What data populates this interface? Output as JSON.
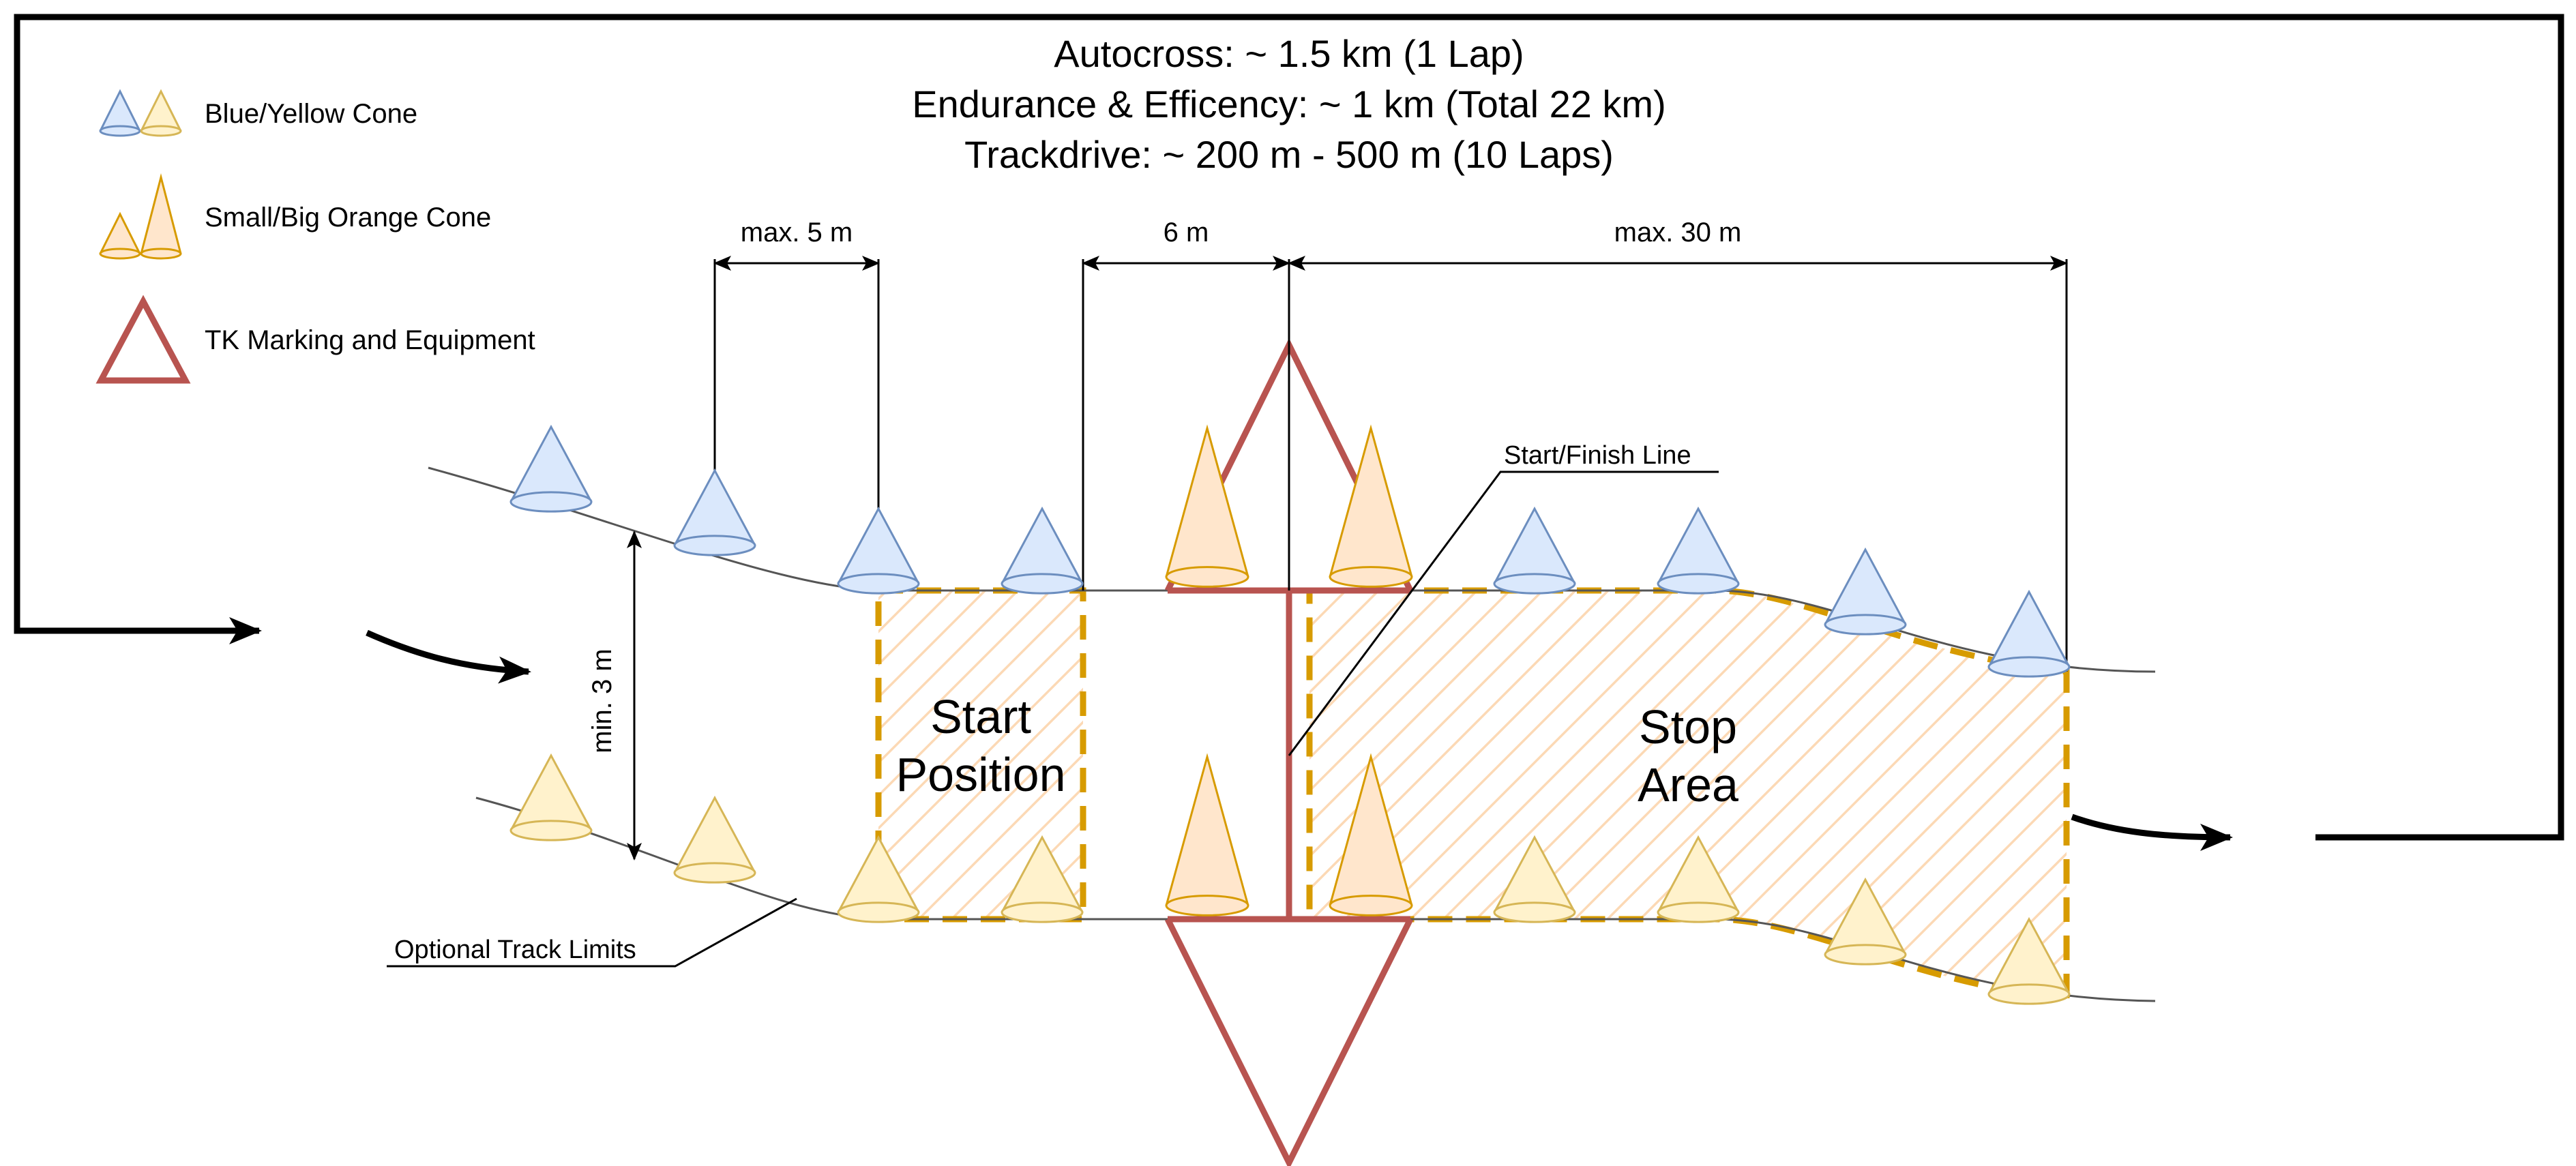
{
  "title_lines": [
    "Autocross: ~ 1.5 km (1 Lap)",
    "Endurance & Efficency: ~ 1 km (Total 22 km)",
    "Trackdrive: ~ 200 m - 500 m (10 Laps)"
  ],
  "legend": {
    "blue_yellow": "Blue/Yellow Cone",
    "orange": "Small/Big Orange Cone",
    "tk": "TK Marking and Equipment"
  },
  "dimensions": {
    "max5": "max. 5 m",
    "six": "6 m",
    "max30": "max. 30 m",
    "min3": "min. 3 m"
  },
  "areas": {
    "start": [
      "Start",
      "Position"
    ],
    "stop": [
      "Stop",
      "Area"
    ]
  },
  "callouts": {
    "start_finish": "Start/Finish Line",
    "optional_limits": "Optional Track Limits"
  },
  "colors": {
    "blue_fill": "#dae8fc",
    "blue_stroke": "#6c8ebf",
    "yellow_fill": "#fff2cc",
    "yellow_stroke": "#d6b656",
    "orange_fill": "#ffe6cc",
    "orange_stroke": "#d79b00",
    "tk_red": "#b85450",
    "hatch": "#fcd9b5",
    "dash": "#d79b00"
  }
}
